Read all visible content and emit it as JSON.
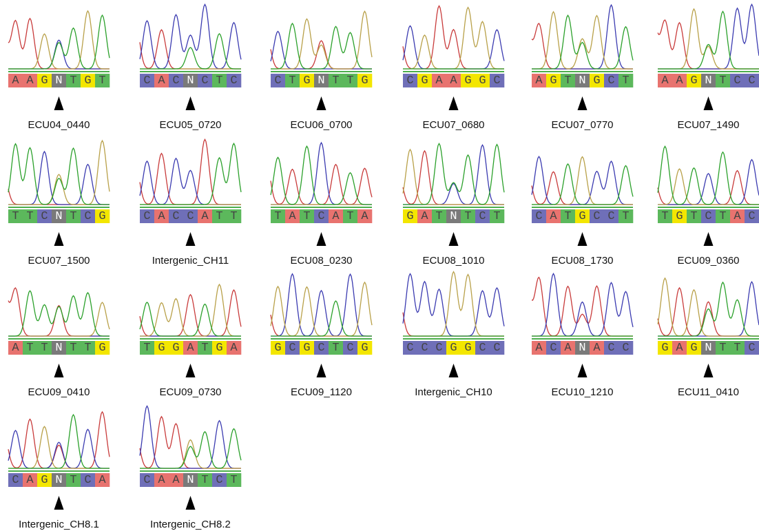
{
  "panels": [
    {
      "label": "ECU04_0440",
      "bases": [
        "A",
        "A",
        "G",
        "N",
        "T",
        "G",
        "T"
      ]
    },
    {
      "label": "ECU05_0720",
      "bases": [
        "C",
        "A",
        "C",
        "N",
        "C",
        "T",
        "C"
      ]
    },
    {
      "label": "ECU06_0700",
      "bases": [
        "C",
        "T",
        "G",
        "N",
        "T",
        "T",
        "G"
      ]
    },
    {
      "label": "ECU07_0680",
      "bases": [
        "C",
        "G",
        "A",
        "A",
        "G",
        "G",
        "C"
      ]
    },
    {
      "label": "ECU07_0770",
      "bases": [
        "A",
        "G",
        "T",
        "N",
        "G",
        "C",
        "T"
      ]
    },
    {
      "label": "ECU07_1490",
      "bases": [
        "A",
        "A",
        "G",
        "N",
        "T",
        "C",
        "C"
      ]
    },
    {
      "label": "ECU07_1500",
      "bases": [
        "T",
        "T",
        "C",
        "N",
        "T",
        "C",
        "G"
      ]
    },
    {
      "label": "Intergenic_CH11",
      "bases": [
        "C",
        "A",
        "C",
        "C",
        "A",
        "T",
        "T"
      ]
    },
    {
      "label": "ECU08_0230",
      "bases": [
        "T",
        "A",
        "T",
        "C",
        "A",
        "T",
        "A"
      ]
    },
    {
      "label": "ECU08_1010",
      "bases": [
        "G",
        "A",
        "T",
        "N",
        "T",
        "C",
        "T"
      ]
    },
    {
      "label": "ECU08_1730",
      "bases": [
        "C",
        "A",
        "T",
        "G",
        "C",
        "C",
        "T"
      ]
    },
    {
      "label": "ECU09_0360",
      "bases": [
        "T",
        "G",
        "T",
        "C",
        "T",
        "A",
        "C"
      ]
    },
    {
      "label": "ECU09_0410",
      "bases": [
        "A",
        "T",
        "T",
        "N",
        "T",
        "T",
        "G"
      ]
    },
    {
      "label": "ECU09_0730",
      "bases": [
        "T",
        "G",
        "G",
        "A",
        "T",
        "G",
        "A"
      ]
    },
    {
      "label": "ECU09_1120",
      "bases": [
        "G",
        "C",
        "G",
        "C",
        "T",
        "C",
        "G"
      ]
    },
    {
      "label": "Intergenic_CH10",
      "bases": [
        "C",
        "C",
        "C",
        "G",
        "G",
        "C",
        "C"
      ]
    },
    {
      "label": "ECU10_1210",
      "bases": [
        "A",
        "C",
        "A",
        "N",
        "A",
        "C",
        "C"
      ]
    },
    {
      "label": "ECU11_0410",
      "bases": [
        "G",
        "A",
        "G",
        "N",
        "T",
        "T",
        "C"
      ]
    },
    {
      "label": "Intergenic_CH8.1",
      "bases": [
        "C",
        "A",
        "G",
        "N",
        "T",
        "C",
        "A"
      ]
    },
    {
      "label": "Intergenic_CH8.2",
      "bases": [
        "C",
        "A",
        "A",
        "N",
        "T",
        "C",
        "T"
      ]
    }
  ]
}
